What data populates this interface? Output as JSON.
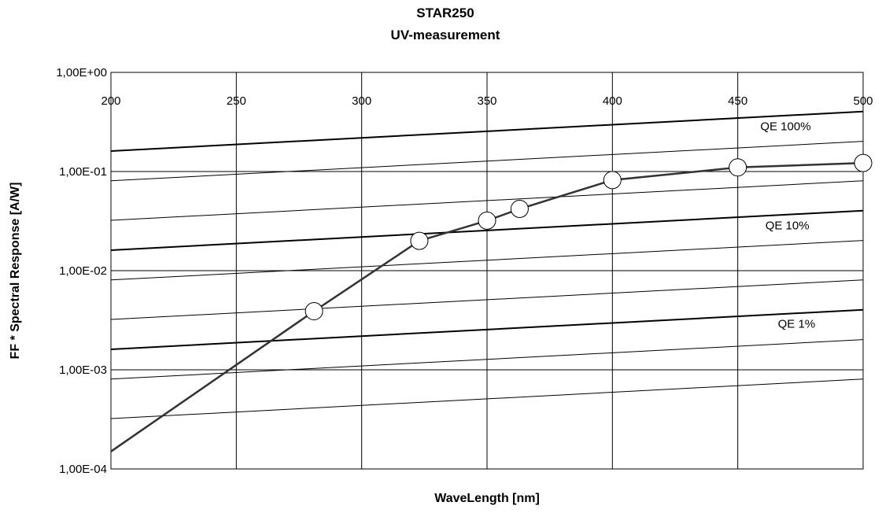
{
  "chart_data": {
    "type": "line",
    "title": "STAR250",
    "subtitle": "UV-measurement",
    "xlabel": "WaveLength [nm]",
    "ylabel": "FF * Spectral Response [A/W]",
    "x_scale": "linear",
    "y_scale": "log",
    "xlim": [
      200,
      500
    ],
    "ylim": [
      0.0001,
      1
    ],
    "x_ticks": [
      200,
      250,
      300,
      350,
      400,
      450,
      500
    ],
    "x_tick_labels": [
      "200",
      "250",
      "300",
      "350",
      "400",
      "450",
      "500"
    ],
    "y_ticks": [
      1,
      0.1,
      0.01,
      0.001,
      0.0001
    ],
    "y_tick_labels": [
      "1,00E+00",
      "1,00E-01",
      "1,00E-02",
      "1,00E-03",
      "1,00E-04"
    ],
    "grid": true,
    "legend": "none",
    "series": [
      {
        "name": "",
        "marker": "circle",
        "x": [
          200,
          281,
          323,
          350,
          363,
          400,
          450,
          500
        ],
        "y": [
          0.00015,
          0.0039,
          0.02,
          0.032,
          0.042,
          0.082,
          0.11,
          0.122
        ]
      }
    ],
    "reference_lines": [
      {
        "qe": 1.0,
        "label": "QE 100%",
        "emphasis": "bold",
        "x": [
          200,
          500
        ],
        "y": [
          0.161,
          0.403
        ]
      },
      {
        "qe": 0.5,
        "label": "",
        "emphasis": "thin",
        "x": [
          200,
          500
        ],
        "y": [
          0.0806,
          0.2015
        ]
      },
      {
        "qe": 0.2,
        "label": "",
        "emphasis": "thin",
        "x": [
          200,
          500
        ],
        "y": [
          0.0322,
          0.0806
        ]
      },
      {
        "qe": 0.1,
        "label": "QE 10%",
        "emphasis": "bold",
        "x": [
          200,
          500
        ],
        "y": [
          0.0161,
          0.0403
        ]
      },
      {
        "qe": 0.05,
        "label": "",
        "emphasis": "thin",
        "x": [
          200,
          500
        ],
        "y": [
          0.00806,
          0.02015
        ]
      },
      {
        "qe": 0.02,
        "label": "",
        "emphasis": "thin",
        "x": [
          200,
          500
        ],
        "y": [
          0.00322,
          0.00806
        ]
      },
      {
        "qe": 0.01,
        "label": "QE 1%",
        "emphasis": "bold",
        "x": [
          200,
          500
        ],
        "y": [
          0.00161,
          0.00403
        ]
      },
      {
        "qe": 0.005,
        "label": "",
        "emphasis": "thin",
        "x": [
          200,
          500
        ],
        "y": [
          0.000806,
          0.002015
        ]
      },
      {
        "qe": 0.002,
        "label": "",
        "emphasis": "thin",
        "x": [
          200,
          500
        ],
        "y": [
          0.000322,
          0.000806
        ]
      }
    ],
    "annotations": [
      {
        "text": "QE 100%",
        "x": 459,
        "y": 0.26
      },
      {
        "text": "QE 10%",
        "x": 461,
        "y": 0.0262
      },
      {
        "text": "QE 1%",
        "x": 466,
        "y": 0.00266
      }
    ],
    "colors": {
      "data_line": "#333333",
      "marker_fill": "#ffffff",
      "grid": "#000000",
      "reference": "#000000"
    }
  }
}
